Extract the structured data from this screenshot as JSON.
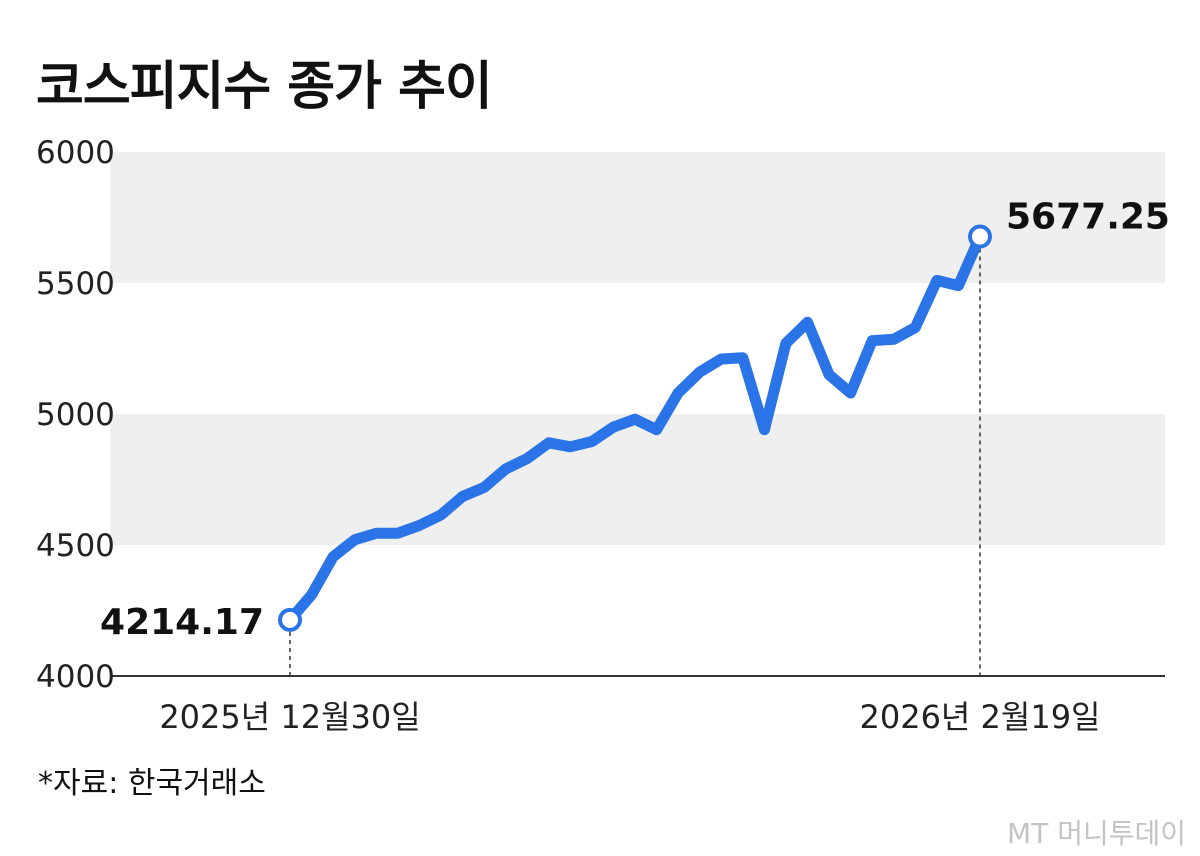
{
  "title": "코스피지수 종가 추이",
  "source": "*자료: 한국거래소",
  "watermark": "MT 머니투데이",
  "colors": {
    "line": "#2b74e8",
    "band": "#efefef",
    "axis": "#333333"
  },
  "chart_data": {
    "type": "line",
    "title": "코스피지수 종가 추이",
    "xlabel": "",
    "ylabel": "",
    "ylim": [
      4000,
      6000
    ],
    "yticks": [
      4000,
      4500,
      5000,
      5500,
      6000
    ],
    "grid": "alternating horizontal bands",
    "x_tick_labels": [
      "2025년 12월30일",
      "2026년 2월19일"
    ],
    "start": {
      "date": "2025년 12월30일",
      "value": 4214.17,
      "label": "4214.17"
    },
    "end": {
      "date": "2026년 2월19일",
      "value": 5677.25,
      "label": "5677.25"
    },
    "series": [
      {
        "values": [
          4214.17,
          4310,
          4455,
          4520,
          4545,
          4545,
          4575,
          4615,
          4685,
          4720,
          4790,
          4830,
          4890,
          4875,
          4895,
          4950,
          4980,
          4940,
          5080,
          5160,
          5210,
          5215,
          4940,
          5270,
          5350,
          5150,
          5080,
          5280,
          5285,
          5330,
          5510,
          5490,
          5677.25
        ]
      }
    ]
  }
}
